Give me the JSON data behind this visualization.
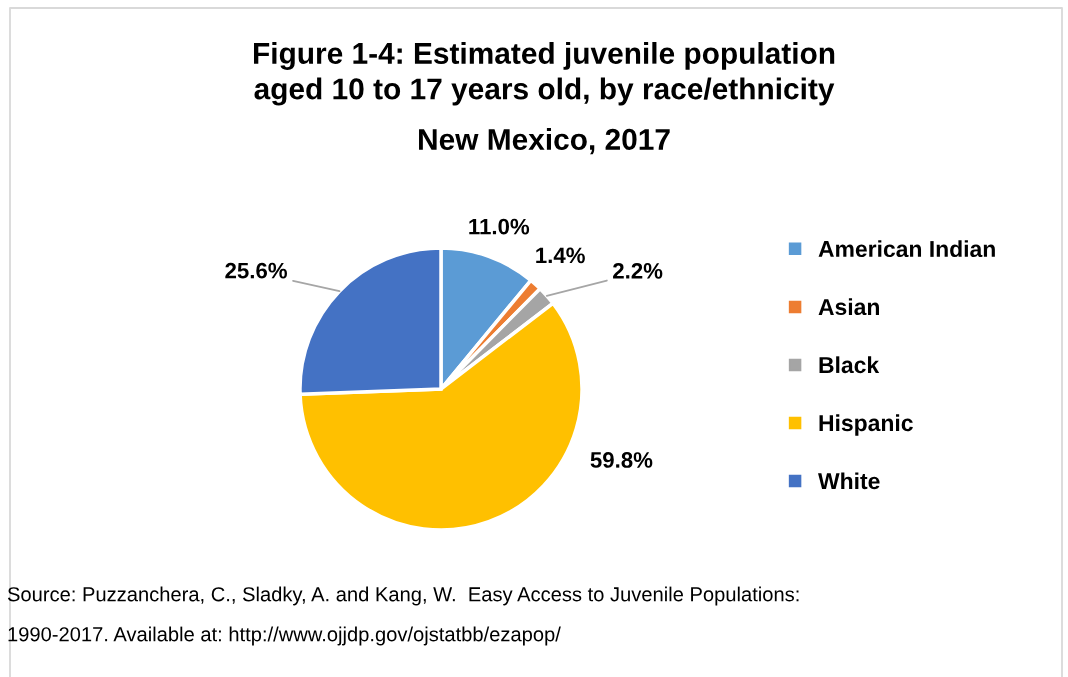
{
  "chart_data": {
    "type": "pie",
    "title": "Figure 1-4: Estimated juvenile population\naged 10 to 17 years old, by race/ethnicity",
    "subtitle": "New Mexico, 2017",
    "categories": [
      "American Indian",
      "Asian",
      "Black",
      "Hispanic",
      "White"
    ],
    "values": [
      11.0,
      1.4,
      2.2,
      59.8,
      25.6
    ],
    "colors": [
      "#5b9bd5",
      "#ed7d31",
      "#a5a5a5",
      "#ffc000",
      "#4472c4"
    ],
    "value_labels": [
      "11.0%",
      "1.4%",
      "2.2%",
      "59.8%",
      "25.6%"
    ],
    "legend": "right",
    "annotations": [
      "Source: Puzzanchera, C., Sladky, A. and Kang, W.  Easy Access to Juvenile Populations:",
      "1990-2017. Available at: http://www.ojjdp.gov/ojstatbb/ezapop/"
    ]
  }
}
